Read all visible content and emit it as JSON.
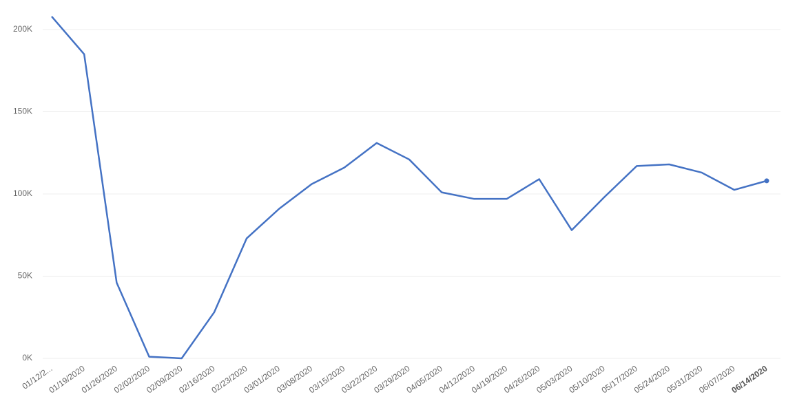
{
  "chart_data": {
    "type": "line",
    "categories": [
      "01/12/2...",
      "01/19/2020",
      "01/26/2020",
      "02/02/2020",
      "02/09/2020",
      "02/16/2020",
      "02/23/2020",
      "03/01/2020",
      "03/08/2020",
      "03/15/2020",
      "03/22/2020",
      "03/29/2020",
      "04/05/2020",
      "04/12/2020",
      "04/19/2020",
      "04/26/2020",
      "05/03/2020",
      "05/10/2020",
      "05/17/2020",
      "05/24/2020",
      "05/31/2020",
      "06/07/2020",
      "06/14/2020"
    ],
    "values": [
      208000,
      185000,
      46000,
      1000,
      0,
      28000,
      73000,
      91000,
      106000,
      116000,
      131000,
      121000,
      101000,
      97000,
      97000,
      109000,
      78000,
      98000,
      117000,
      118000,
      113000,
      102500,
      108000
    ],
    "color": "#4472c4",
    "ylim": [
      0,
      210000
    ],
    "yticks": [
      {
        "value": 0,
        "label": "0K"
      },
      {
        "value": 50000,
        "label": "50K"
      },
      {
        "value": 100000,
        "label": "100K"
      },
      {
        "value": 150000,
        "label": "150K"
      },
      {
        "value": 200000,
        "label": "200K"
      }
    ],
    "grid": true
  }
}
